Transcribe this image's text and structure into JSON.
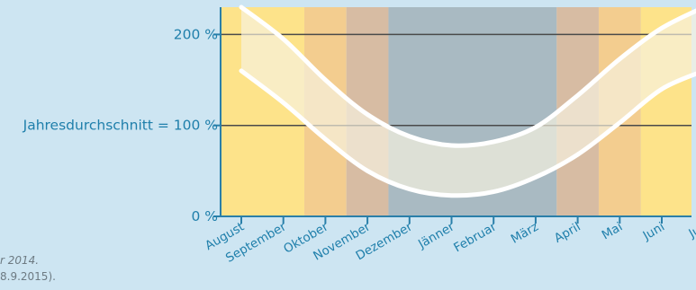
{
  "chart_data": {
    "type": "area",
    "categories": [
      "August",
      "September",
      "Oktober",
      "November",
      "Dezember",
      "Jänner",
      "Februar",
      "März",
      "April",
      "Mai",
      "Juni",
      "Juli"
    ],
    "y_ticks": [
      {
        "value": 0,
        "label": "0 %"
      },
      {
        "value": 100,
        "label": "Jahresdurchschnitt = 100 %"
      },
      {
        "value": 200,
        "label": "200 %"
      }
    ],
    "ylim": [
      0,
      230
    ],
    "series": [
      {
        "values": [
          230,
          195,
          150,
          112,
          88,
          78,
          82,
          98,
          133,
          173,
          207,
          230
        ]
      },
      {
        "values": [
          160,
          125,
          85,
          50,
          30,
          23,
          27,
          43,
          68,
          103,
          140,
          160
        ]
      }
    ],
    "background_bands": [
      {
        "from": 0,
        "to": 1.5,
        "color": "#fde38a"
      },
      {
        "from": 1.5,
        "to": 2.5,
        "color": "#f3cd8f"
      },
      {
        "from": 2.5,
        "to": 3.5,
        "color": "#d7bca3"
      },
      {
        "from": 3.5,
        "to": 7.5,
        "color": "#a9bac2"
      },
      {
        "from": 7.5,
        "to": 8.5,
        "color": "#d7bca3"
      },
      {
        "from": 8.5,
        "to": 9.5,
        "color": "#f3cd8f"
      },
      {
        "from": 9.5,
        "to": 12,
        "color": "#fde38a"
      }
    ],
    "band_fill": "#f6f1e0",
    "band_stroke": "#ffffff",
    "axis_color": "#2a7fa9"
  },
  "footnote": {
    "line1": "r 2014.",
    "line2": "8.9.2015)."
  }
}
